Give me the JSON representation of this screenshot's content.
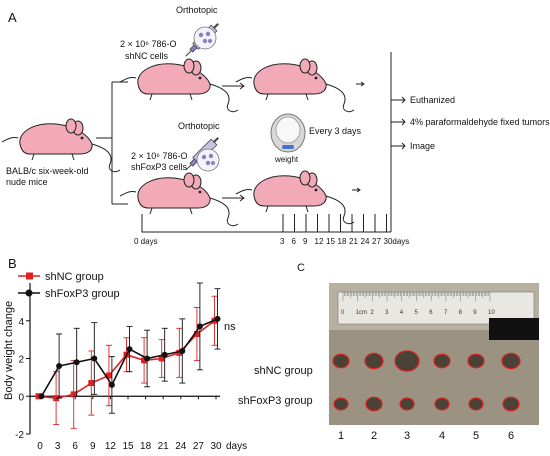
{
  "panels": {
    "A": {
      "label": "A",
      "top_label": "Orthotopic",
      "top_dose": "2 × 10⁶ 786-O",
      "top_cells": "shNC cells",
      "bottom_label": "Orthotopic",
      "bottom_dose": "2 × 10⁶ 786-O",
      "bottom_cells": "shFoxP3 cells",
      "mice_line1": "BALB/c six-week-old",
      "mice_line2": "nude mice",
      "every": "Every 3 days",
      "weight": "weight",
      "out1": "Euthanized",
      "out2": "4% paraformaldehyde fixed tumors",
      "out3": "Image",
      "day0": "0 days",
      "ticks": [
        "3",
        "6",
        "9",
        "12",
        "15",
        "18",
        "21",
        "24",
        "27",
        "30days"
      ]
    },
    "B": {
      "label": "B"
    },
    "C": {
      "label": "C",
      "row1": "shNC group",
      "row2": "shFoxP3 group",
      "cols": [
        "1",
        "2",
        "3",
        "4",
        "5",
        "6"
      ],
      "ruler_labels": [
        "0",
        "1cm",
        "2",
        "3",
        "4",
        "5",
        "6",
        "7",
        "8",
        "9",
        "10"
      ]
    }
  },
  "chart_data": {
    "type": "line",
    "ylabel": "Body weight change",
    "xlabel": "days",
    "x": [
      0,
      3,
      6,
      9,
      12,
      15,
      18,
      21,
      24,
      27,
      30
    ],
    "xticks": [
      "0",
      "3",
      "6",
      "9",
      "12",
      "15",
      "18",
      "21",
      "24",
      "27",
      "30"
    ],
    "xtick_unit": "days",
    "ylim": [
      -2,
      6
    ],
    "yticks": [
      -2,
      0,
      2,
      4
    ],
    "annotation": "ns",
    "series": [
      {
        "name": "shNC group",
        "color": "#e02020",
        "marker": "square",
        "values": [
          0,
          -0.1,
          0.1,
          0.7,
          1.1,
          2.2,
          1.9,
          2.0,
          2.3,
          3.3,
          4.0
        ],
        "err": [
          0,
          1.4,
          1.8,
          1.7,
          1.6,
          0.9,
          1.2,
          1.0,
          1.3,
          1.4,
          1.3
        ]
      },
      {
        "name": "shFoxP3 group",
        "color": "#111111",
        "marker": "circle",
        "values": [
          0,
          1.6,
          1.8,
          2.0,
          0.6,
          2.5,
          2.0,
          2.2,
          2.4,
          3.7,
          4.1
        ],
        "err": [
          0,
          1.7,
          1.8,
          1.9,
          1.5,
          1.2,
          1.5,
          1.4,
          1.7,
          2.3,
          1.6
        ]
      }
    ]
  }
}
